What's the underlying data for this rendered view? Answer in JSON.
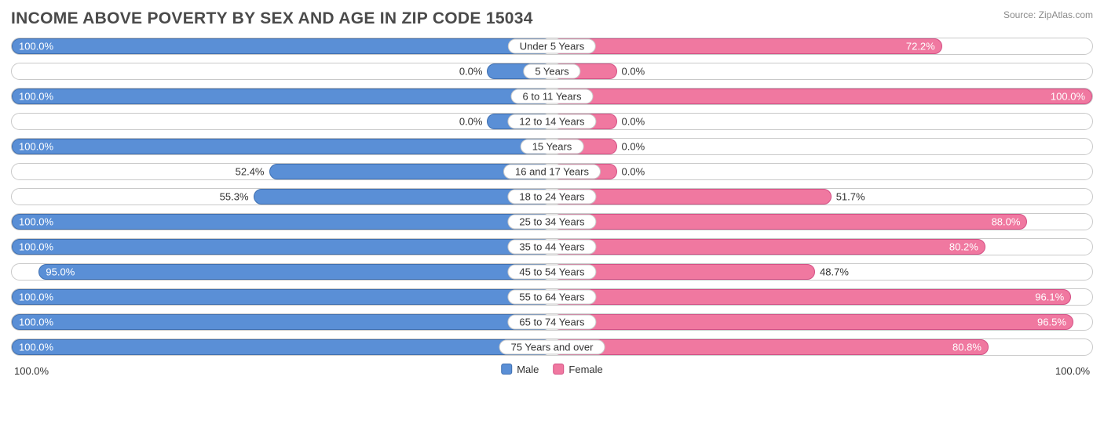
{
  "title": "INCOME ABOVE POVERTY BY SEX AND AGE IN ZIP CODE 15034",
  "source": "Source: ZipAtlas.com",
  "colors": {
    "male_fill": "#5a8fd6",
    "male_stroke": "#3f6fb0",
    "female_fill": "#f078a0",
    "female_stroke": "#d35085",
    "row_border": "#c9c9c9",
    "bg": "#ffffff",
    "text": "#333333",
    "title_text": "#4a4a4a"
  },
  "axis": {
    "left": "100.0%",
    "right": "100.0%"
  },
  "legend": {
    "male": "Male",
    "female": "Female"
  },
  "min_bar_pct": 12,
  "rows": [
    {
      "label": "Under 5 Years",
      "male": 100.0,
      "female": 72.2
    },
    {
      "label": "5 Years",
      "male": 0.0,
      "female": 0.0
    },
    {
      "label": "6 to 11 Years",
      "male": 100.0,
      "female": 100.0
    },
    {
      "label": "12 to 14 Years",
      "male": 0.0,
      "female": 0.0
    },
    {
      "label": "15 Years",
      "male": 100.0,
      "female": 0.0
    },
    {
      "label": "16 and 17 Years",
      "male": 52.4,
      "female": 0.0
    },
    {
      "label": "18 to 24 Years",
      "male": 55.3,
      "female": 51.7
    },
    {
      "label": "25 to 34 Years",
      "male": 100.0,
      "female": 88.0
    },
    {
      "label": "35 to 44 Years",
      "male": 100.0,
      "female": 80.2
    },
    {
      "label": "45 to 54 Years",
      "male": 95.0,
      "female": 48.7
    },
    {
      "label": "55 to 64 Years",
      "male": 100.0,
      "female": 96.1
    },
    {
      "label": "65 to 74 Years",
      "male": 100.0,
      "female": 96.5
    },
    {
      "label": "75 Years and over",
      "male": 100.0,
      "female": 80.8
    }
  ]
}
